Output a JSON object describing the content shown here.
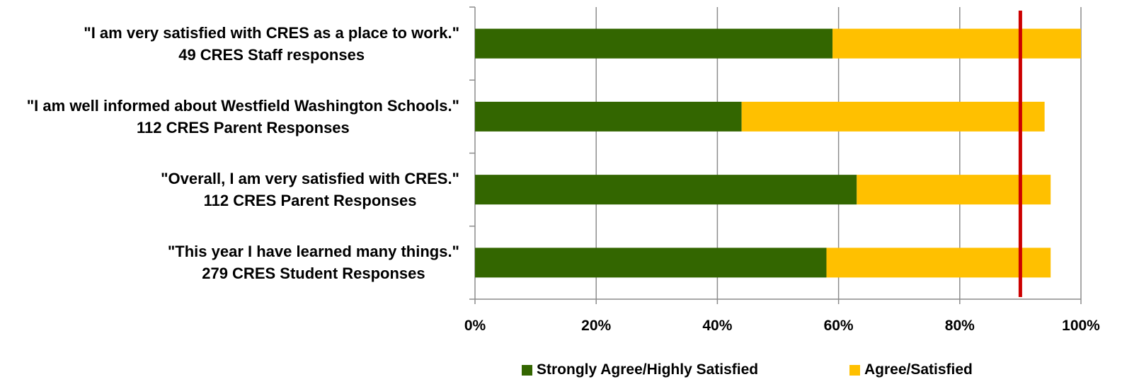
{
  "chart_data": {
    "type": "bar",
    "orientation": "horizontal",
    "stacked": true,
    "categories": [
      {
        "line1": "\"I am very satisfied with CRES as a place to work.\"",
        "line2": "49 CRES Staff responses"
      },
      {
        "line1": "\"I am well informed about Westfield Washington Schools.\"",
        "line2": "112 CRES Parent Responses"
      },
      {
        "line1": "\"Overall, I am very satisfied with CRES.\"",
        "line2": "112 CRES Parent Responses"
      },
      {
        "line1": "\"This year I have learned many things.\"",
        "line2": "279 CRES Student Responses"
      }
    ],
    "series": [
      {
        "name": "Strongly Agree/Highly Satisfied",
        "color": "#336600",
        "values": [
          59,
          44,
          63,
          58
        ]
      },
      {
        "name": "Agree/Satisfied",
        "color": "#FFC000",
        "values": [
          41,
          50,
          32,
          37
        ]
      }
    ],
    "xlim": [
      0,
      100
    ],
    "xticks": [
      "0%",
      "20%",
      "40%",
      "60%",
      "80%",
      "100%"
    ],
    "grid": true,
    "reference_line": {
      "value": 90,
      "color": "#CC0000"
    },
    "legend_position": "bottom"
  }
}
